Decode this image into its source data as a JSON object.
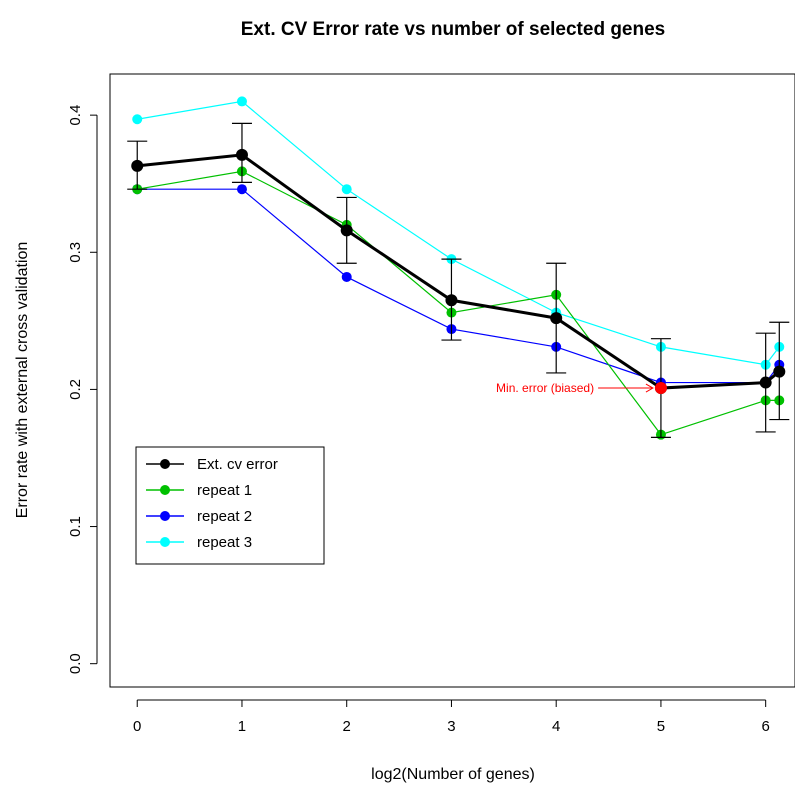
{
  "chart_data": {
    "type": "line",
    "title": "Ext. CV Error rate vs number of selected genes",
    "xlabel": "log2(Number of genes)",
    "ylabel": "Error rate with external cross validation",
    "xlim": [
      -0.26,
      6.28
    ],
    "ylim": [
      -0.017,
      0.43
    ],
    "xticks": [
      "0",
      "1",
      "2",
      "3",
      "4",
      "5",
      "6"
    ],
    "yticks": [
      "0.0",
      "0.1",
      "0.2",
      "0.3",
      "0.4"
    ],
    "grid": false,
    "legend_position": "bottom-left",
    "series": [
      {
        "name": "Ext. cv error",
        "color": "#000000",
        "x": [
          0,
          1,
          2,
          3,
          4,
          5,
          6,
          6.13
        ],
        "y": [
          0.363,
          0.371,
          0.316,
          0.265,
          0.252,
          0.201,
          0.205,
          0.213
        ],
        "errors": [
          [
            0.346,
            0.381
          ],
          [
            0.351,
            0.394
          ],
          [
            0.292,
            0.34
          ],
          [
            0.236,
            0.295
          ],
          [
            0.212,
            0.292
          ],
          [
            0.165,
            0.237
          ],
          [
            0.169,
            0.241
          ],
          [
            0.178,
            0.249
          ]
        ]
      },
      {
        "name": "repeat 1",
        "color": "#00c000",
        "x": [
          0,
          1,
          2,
          3,
          4,
          5,
          6,
          6.13
        ],
        "y": [
          0.346,
          0.359,
          0.32,
          0.256,
          0.269,
          0.167,
          0.192,
          0.192
        ]
      },
      {
        "name": "repeat 2",
        "color": "#0000ff",
        "x": [
          0,
          1,
          2,
          3,
          4,
          5,
          6,
          6.13
        ],
        "y": [
          0.346,
          0.346,
          0.282,
          0.244,
          0.231,
          0.205,
          0.205,
          0.218
        ]
      },
      {
        "name": "repeat 3",
        "color": "#00ffff",
        "x": [
          0,
          1,
          2,
          3,
          4,
          5,
          6,
          6.13
        ],
        "y": [
          0.397,
          0.41,
          0.346,
          0.295,
          0.256,
          0.231,
          0.218,
          0.231
        ]
      }
    ],
    "annotation": {
      "text": "Min. error (biased)",
      "color": "#ff0000",
      "point_x": 5,
      "point_y": 0.201,
      "arrow_from_x": 4.4
    }
  }
}
